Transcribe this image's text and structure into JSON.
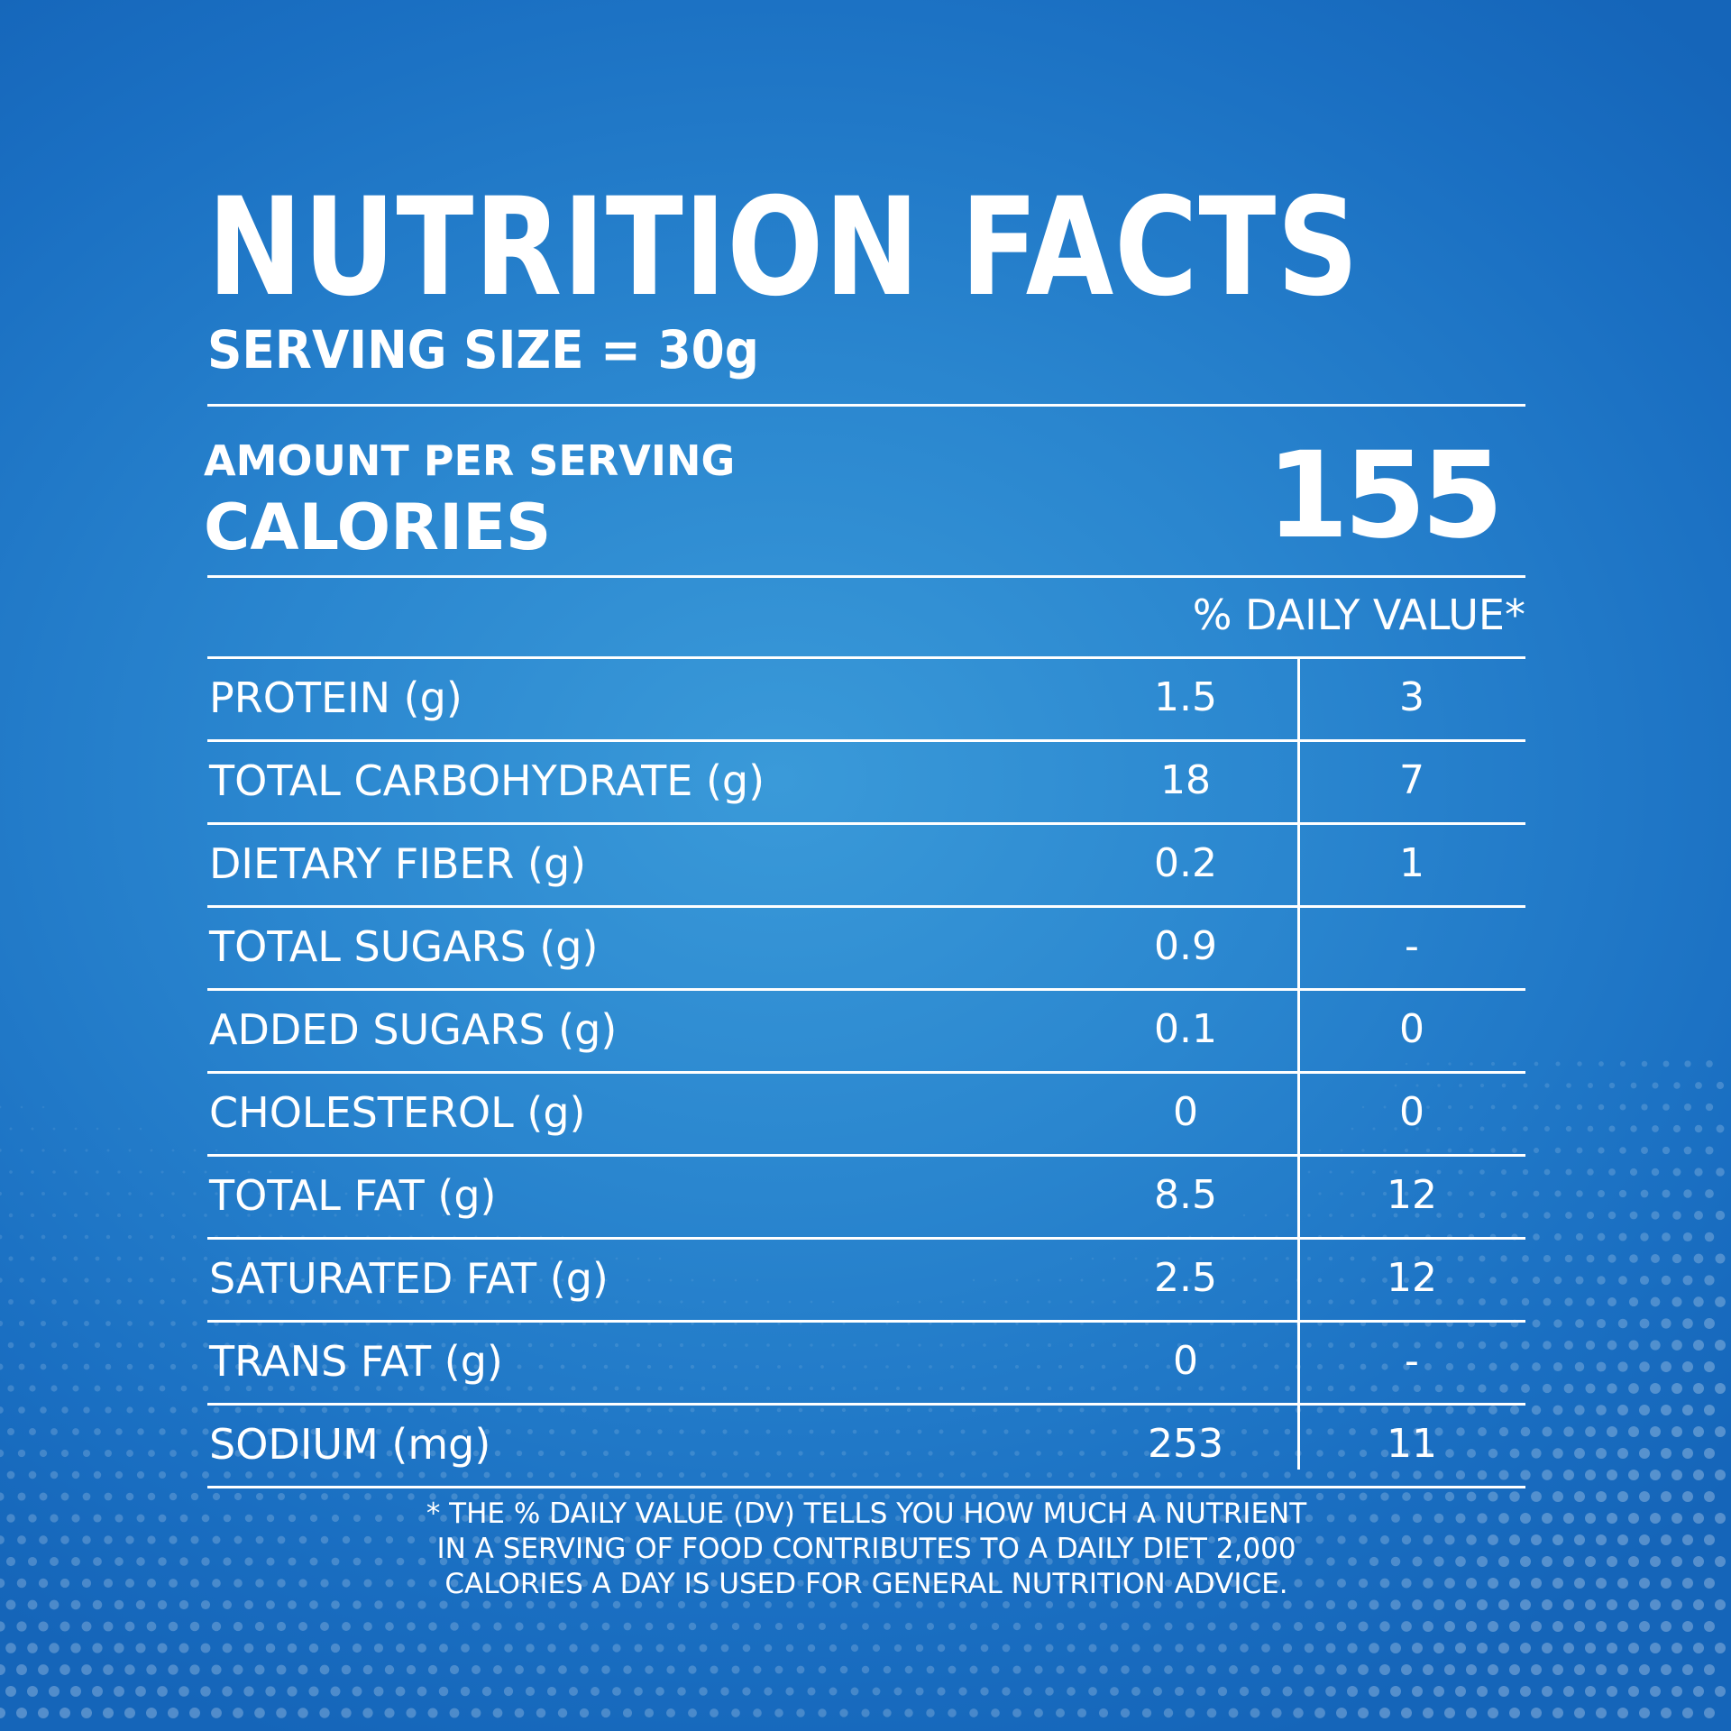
{
  "label": {
    "title": "NUTRITION FACTS",
    "serving_size": "SERVING SIZE = 30g",
    "amount_per_serving": "AMOUNT PER SERVING",
    "calories_label": "CALORIES",
    "calories_value": "155",
    "daily_value_header": "% DAILY VALUE*"
  },
  "nutrients": [
    {
      "name": "PROTEIN (g)",
      "amount": "1.5",
      "dv": "3"
    },
    {
      "name": "TOTAL CARBOHYDRATE (g)",
      "amount": "18",
      "dv": "7"
    },
    {
      "name": "DIETARY FIBER (g)",
      "amount": "0.2",
      "dv": "1"
    },
    {
      "name": "TOTAL SUGARS (g)",
      "amount": "0.9",
      "dv": "-"
    },
    {
      "name": "ADDED SUGARS (g)",
      "amount": "0.1",
      "dv": "0"
    },
    {
      "name": "CHOLESTEROL (g)",
      "amount": "0",
      "dv": "0"
    },
    {
      "name": "TOTAL FAT (g)",
      "amount": "8.5",
      "dv": "12"
    },
    {
      "name": "SATURATED FAT (g)",
      "amount": "2.5",
      "dv": "12"
    },
    {
      "name": "TRANS FAT (g)",
      "amount": "0",
      "dv": "-"
    },
    {
      "name": "SODIUM (mg)",
      "amount": "253",
      "dv": "11"
    }
  ],
  "footnote": {
    "line1": "* THE % DAILY VALUE (DV) TELLS YOU HOW MUCH A NUTRIENT",
    "line2": "IN A SERVING OF FOOD CONTRIBUTES TO A DAILY DIET 2,000",
    "line3": "CALORIES A DAY IS USED FOR GENERAL NUTRITION ADVICE."
  },
  "colors": {
    "background": "#2a86cf",
    "text": "#ffffff"
  }
}
